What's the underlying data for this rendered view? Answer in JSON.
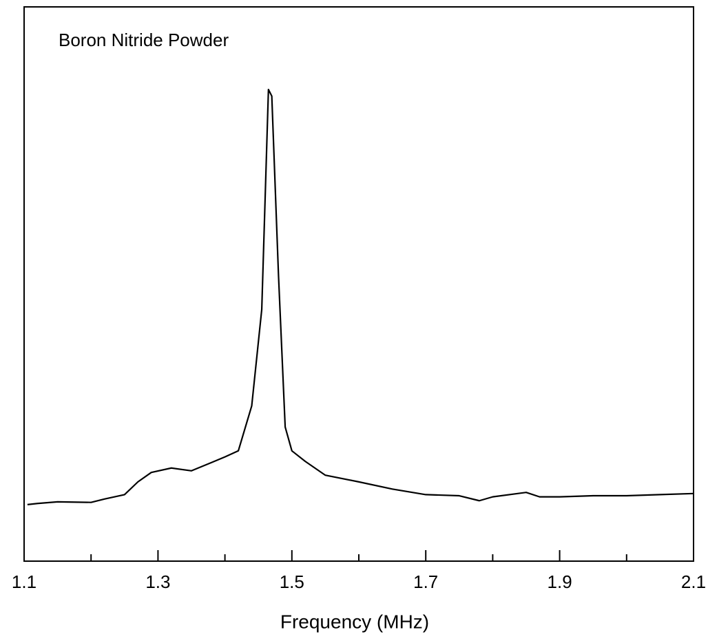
{
  "chart_data": {
    "type": "line",
    "title": "Boron Nitride Powder",
    "xlabel": "Frequency (MHz)",
    "x": [
      1.105,
      1.12,
      1.15,
      1.2,
      1.22,
      1.25,
      1.27,
      1.29,
      1.32,
      1.35,
      1.38,
      1.4,
      1.42,
      1.44,
      1.455,
      1.465,
      1.47,
      1.48,
      1.49,
      1.5,
      1.52,
      1.55,
      1.6,
      1.65,
      1.7,
      1.75,
      1.78,
      1.8,
      1.85,
      1.87,
      1.9,
      1.95,
      2.0,
      2.05,
      2.1
    ],
    "series": [
      {
        "color": "#000000",
        "values": [
          10.2,
          10.4,
          10.7,
          10.6,
          11.2,
          12.0,
          14.3,
          16.0,
          16.8,
          16.3,
          17.8,
          18.8,
          19.9,
          28.0,
          45.4,
          85.1,
          83.9,
          51.6,
          24.2,
          19.9,
          18.0,
          15.5,
          14.3,
          13.0,
          12.0,
          11.8,
          10.9,
          11.6,
          12.4,
          11.6,
          11.6,
          11.8,
          11.8,
          12.0,
          12.2
        ]
      }
    ],
    "xlim": [
      1.1,
      2.1
    ],
    "xticks": [
      1.1,
      1.3,
      1.5,
      1.7,
      1.9,
      2.1
    ],
    "xminorticks": [
      1.2,
      1.4,
      1.6,
      1.8,
      2.0
    ],
    "ylim": [
      0,
      100
    ]
  }
}
